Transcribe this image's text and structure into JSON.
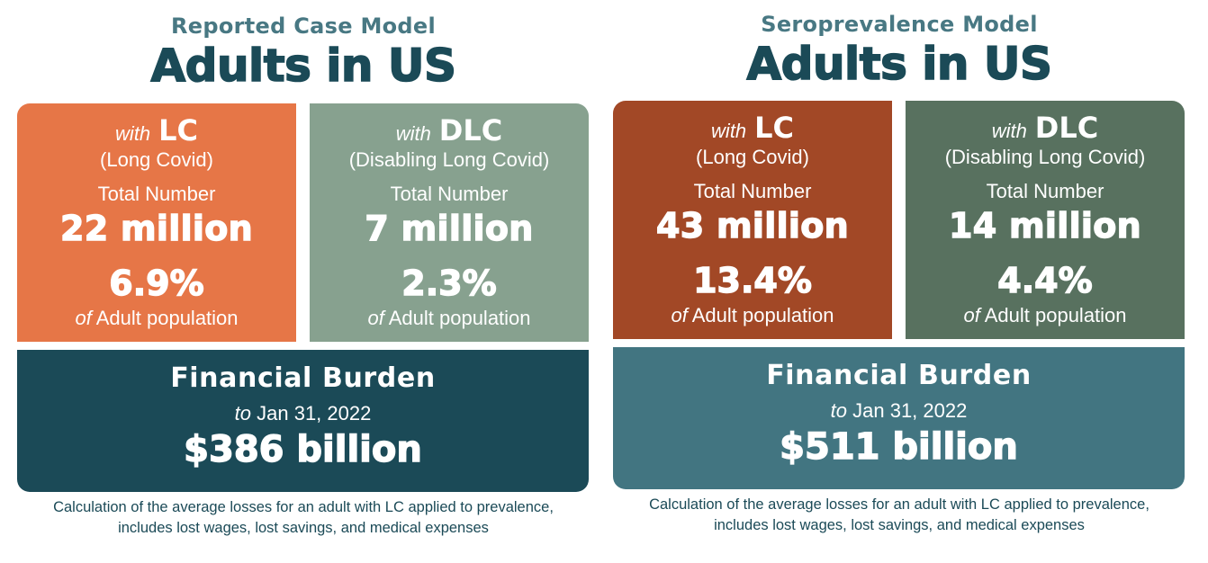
{
  "panels": [
    {
      "subtitle": "Reported Case Model",
      "headline": "Adults in US",
      "lc": {
        "with": "with",
        "abbr": "LC",
        "name": "(Long Covid)",
        "total_label": "Total Number",
        "number": "22 million",
        "percent": "6.9%",
        "of": "of",
        "population": "Adult population"
      },
      "dlc": {
        "with": "with",
        "abbr": "DLC",
        "name": "(Disabling Long Covid)",
        "total_label": "Total Number",
        "number": "7 million",
        "percent": "2.3%",
        "of": "of",
        "population": "Adult population"
      },
      "burden": {
        "title": "Financial Burden",
        "to": "to",
        "date": "Jan 31, 2022",
        "amount": "$386 billion"
      },
      "footnote": {
        "line1": "Calculation of the average losses for an adult with LC applied to prevalence,",
        "line2": "includes lost wages, lost savings, and medical expenses"
      },
      "colors": {
        "lc_box": "#e67647",
        "dlc_box": "#87a18f",
        "burden_box": "#1b4a57"
      }
    },
    {
      "subtitle": "Seroprevalence Model",
      "headline": "Adults in US",
      "lc": {
        "with": "with",
        "abbr": "LC",
        "name": "(Long Covid)",
        "total_label": "Total Number",
        "number": "43 million",
        "percent": "13.4%",
        "of": "of",
        "population": "Adult population"
      },
      "dlc": {
        "with": "with",
        "abbr": "DLC",
        "name": "(Disabling Long Covid)",
        "total_label": "Total Number",
        "number": "14 million",
        "percent": "4.4%",
        "of": "of",
        "population": "Adult population"
      },
      "burden": {
        "title": "Financial Burden",
        "to": "to",
        "date": "Jan 31, 2022",
        "amount": "$511 billion"
      },
      "footnote": {
        "line1": "Calculation of the average losses for an adult with LC applied to prevalence,",
        "line2": "includes lost wages, lost savings, and medical expenses"
      },
      "colors": {
        "lc_box": "#a24826",
        "dlc_box": "#58715f",
        "burden_box": "#427581"
      }
    }
  ],
  "colors": {
    "subtitle": "#487883",
    "headline": "#1b4a57",
    "footnote": "#1b4a57",
    "background": "#ffffff"
  }
}
